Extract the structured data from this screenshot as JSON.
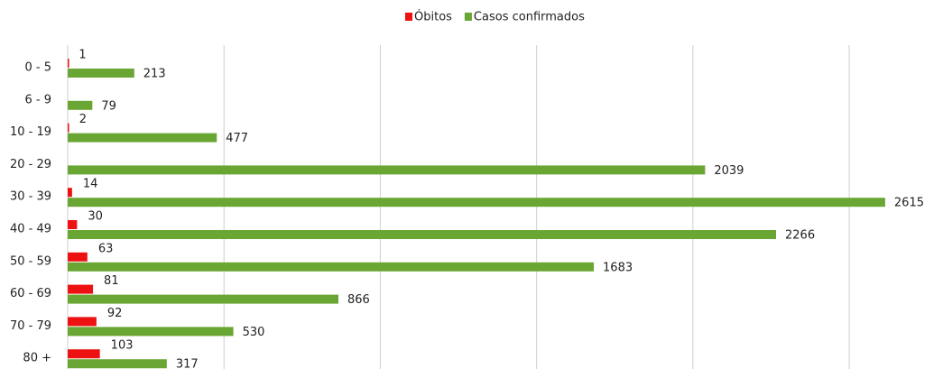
{
  "chart_data": {
    "type": "hbar",
    "categories": [
      "0 - 5",
      "6 - 9",
      "10 - 19",
      "20 - 29",
      "30 - 39",
      "40 - 49",
      "50 - 59",
      "60 - 69",
      "70 - 79",
      "80 +"
    ],
    "series": [
      {
        "name": "Óbitos",
        "color": "#ee1111",
        "values": [
          1,
          null,
          2,
          null,
          14,
          30,
          63,
          81,
          92,
          103
        ]
      },
      {
        "name": "Casos confirmados",
        "color": "#6aa634",
        "values": [
          213,
          79,
          477,
          2039,
          2615,
          2266,
          1683,
          866,
          530,
          317
        ]
      }
    ],
    "xlim": [
      0,
      2800
    ],
    "xticks": [
      0,
      500,
      1000,
      1500,
      2000,
      2500
    ],
    "grid": true,
    "legend": "top"
  }
}
